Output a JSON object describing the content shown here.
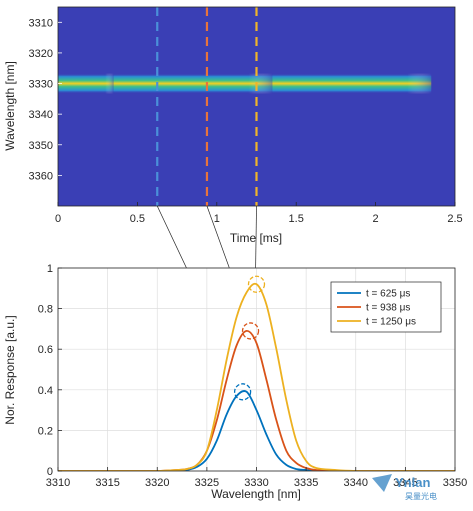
{
  "chart_data": [
    {
      "type": "heatmap",
      "xlabel": "Time [ms]",
      "ylabel": "Wavelength [nm]",
      "xlim": [
        0,
        2.5
      ],
      "ylim": [
        3370,
        3305
      ],
      "x_ticks": [
        "0",
        "0.5",
        "1",
        "1.5",
        "2",
        "2.5"
      ],
      "y_ticks": [
        "3310",
        "3320",
        "3330",
        "3340",
        "3350",
        "3360"
      ],
      "x_tick_values": [
        0,
        0.5,
        1,
        1.5,
        2,
        2.5
      ],
      "y_tick_values": [
        3310,
        3320,
        3330,
        3340,
        3350,
        3360
      ],
      "colormap": "parula",
      "background_color": "#3a3fb5",
      "bright_band": {
        "center_wavelength": 3330,
        "segments": [
          {
            "start_ms": 0.0,
            "end_ms": 0.35
          },
          {
            "start_ms": 0.35,
            "end_ms": 1.35
          },
          {
            "start_ms": 1.35,
            "end_ms": 2.35
          }
        ]
      },
      "markers": [
        {
          "time_ms": 0.625,
          "color": "#4a90d9"
        },
        {
          "time_ms": 0.938,
          "color": "#e8743b"
        },
        {
          "time_ms": 1.25,
          "color": "#f0b429"
        }
      ]
    },
    {
      "type": "line",
      "xlabel": "Wavelength [nm]",
      "ylabel": "Nor. Response [a.u.]",
      "xlim": [
        3310,
        3350
      ],
      "ylim": [
        0,
        1
      ],
      "x_ticks": [
        "3310",
        "3315",
        "3320",
        "3325",
        "3330",
        "3335",
        "3340",
        "3345",
        "3350"
      ],
      "y_ticks": [
        "0",
        "0.2",
        "0.4",
        "0.6",
        "0.8",
        "1"
      ],
      "grid": true,
      "legend_position": "top-right",
      "x": [
        3310,
        3312,
        3314,
        3316,
        3318,
        3320,
        3322,
        3323,
        3324,
        3325,
        3326,
        3327,
        3328,
        3329,
        3330,
        3331,
        3332,
        3333,
        3334,
        3335,
        3336,
        3338,
        3340,
        3342,
        3344,
        3346,
        3348,
        3350
      ],
      "series": [
        {
          "name": "t = 625 μs",
          "color": "#0072bd",
          "values": [
            0,
            0,
            0,
            0,
            0,
            0,
            0,
            0.005,
            0.02,
            0.06,
            0.15,
            0.28,
            0.37,
            0.39,
            0.3,
            0.18,
            0.08,
            0.03,
            0.01,
            0.005,
            0,
            0,
            0,
            0,
            0,
            0,
            0,
            0
          ]
        },
        {
          "name": "t = 938 μs",
          "color": "#d95319",
          "values": [
            0,
            0,
            0,
            0,
            0,
            0,
            0.005,
            0.01,
            0.03,
            0.1,
            0.25,
            0.45,
            0.62,
            0.69,
            0.63,
            0.45,
            0.25,
            0.1,
            0.04,
            0.015,
            0.005,
            0,
            0,
            0,
            0,
            0,
            0,
            0
          ]
        },
        {
          "name": "t = 1250 μs",
          "color": "#edb120",
          "values": [
            0,
            0,
            0,
            0,
            0,
            0,
            0.005,
            0.01,
            0.03,
            0.1,
            0.3,
            0.55,
            0.76,
            0.88,
            0.92,
            0.82,
            0.6,
            0.35,
            0.15,
            0.05,
            0.015,
            0.005,
            0,
            0,
            0,
            0,
            0,
            0
          ]
        }
      ],
      "peak_circles": [
        {
          "x": 3328.6,
          "y": 0.39,
          "color": "#0072bd"
        },
        {
          "x": 3329.4,
          "y": 0.69,
          "color": "#d95319"
        },
        {
          "x": 3330.0,
          "y": 0.92,
          "color": "#edb120"
        }
      ]
    }
  ],
  "watermark": {
    "text": "Ynlan",
    "subtext": "昊量光电"
  }
}
